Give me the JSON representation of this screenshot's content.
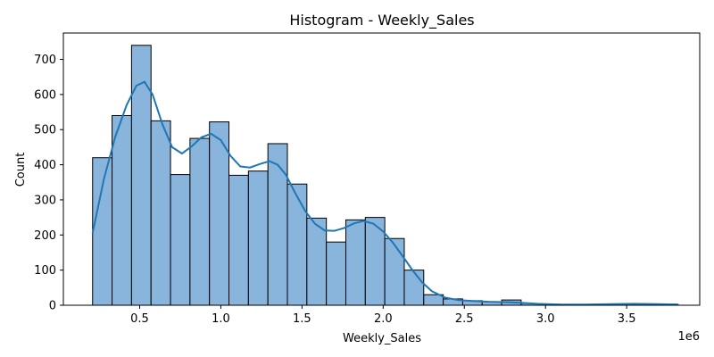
{
  "chart_data": {
    "type": "bar",
    "title": "Histogram - Weekly_Sales",
    "xlabel": "Weekly_Sales",
    "ylabel": "Count",
    "x_offset_label": "1e6",
    "xlim": [
      0.03,
      3.95
    ],
    "ylim": [
      0,
      775
    ],
    "xticks": [
      0.5,
      1.0,
      1.5,
      2.0,
      2.5,
      3.0,
      3.5
    ],
    "xtick_labels": [
      "0.5",
      "1.0",
      "1.5",
      "2.0",
      "2.5",
      "3.0",
      "3.5"
    ],
    "yticks": [
      0,
      100,
      200,
      300,
      400,
      500,
      600,
      700
    ],
    "ytick_labels": [
      "0",
      "100",
      "200",
      "300",
      "400",
      "500",
      "600",
      "700"
    ],
    "bar_color": "#89b4dc",
    "bar_edge_color": "#000000",
    "kde_color": "#1f77b4",
    "bins": [
      {
        "x0": 0.21,
        "x1": 0.33,
        "count": 420
      },
      {
        "x0": 0.33,
        "x1": 0.45,
        "count": 540
      },
      {
        "x0": 0.45,
        "x1": 0.57,
        "count": 740
      },
      {
        "x0": 0.57,
        "x1": 0.69,
        "count": 525
      },
      {
        "x0": 0.69,
        "x1": 0.81,
        "count": 372
      },
      {
        "x0": 0.81,
        "x1": 0.93,
        "count": 475
      },
      {
        "x0": 0.93,
        "x1": 1.05,
        "count": 522
      },
      {
        "x0": 1.05,
        "x1": 1.17,
        "count": 370
      },
      {
        "x0": 1.17,
        "x1": 1.29,
        "count": 382
      },
      {
        "x0": 1.29,
        "x1": 1.41,
        "count": 460
      },
      {
        "x0": 1.41,
        "x1": 1.53,
        "count": 345
      },
      {
        "x0": 1.53,
        "x1": 1.65,
        "count": 248
      },
      {
        "x0": 1.65,
        "x1": 1.77,
        "count": 180
      },
      {
        "x0": 1.77,
        "x1": 1.89,
        "count": 243
      },
      {
        "x0": 1.89,
        "x1": 2.01,
        "count": 250
      },
      {
        "x0": 2.01,
        "x1": 2.13,
        "count": 190
      },
      {
        "x0": 2.13,
        "x1": 2.25,
        "count": 100
      },
      {
        "x0": 2.25,
        "x1": 2.37,
        "count": 30
      },
      {
        "x0": 2.37,
        "x1": 2.49,
        "count": 18
      },
      {
        "x0": 2.49,
        "x1": 2.61,
        "count": 13
      },
      {
        "x0": 2.61,
        "x1": 2.73,
        "count": 10
      },
      {
        "x0": 2.73,
        "x1": 2.85,
        "count": 15
      },
      {
        "x0": 2.85,
        "x1": 2.97,
        "count": 5
      },
      {
        "x0": 2.97,
        "x1": 3.09,
        "count": 2
      },
      {
        "x0": 3.09,
        "x1": 3.21,
        "count": 1
      },
      {
        "x0": 3.21,
        "x1": 3.33,
        "count": 1
      },
      {
        "x0": 3.33,
        "x1": 3.45,
        "count": 2
      },
      {
        "x0": 3.45,
        "x1": 3.57,
        "count": 4
      },
      {
        "x0": 3.57,
        "x1": 3.69,
        "count": 2
      },
      {
        "x0": 3.69,
        "x1": 3.81,
        "count": 3
      }
    ],
    "kde": {
      "x": [
        0.21,
        0.28,
        0.35,
        0.42,
        0.48,
        0.53,
        0.58,
        0.64,
        0.7,
        0.76,
        0.82,
        0.88,
        0.94,
        1.0,
        1.06,
        1.12,
        1.18,
        1.24,
        1.3,
        1.35,
        1.4,
        1.46,
        1.52,
        1.58,
        1.64,
        1.7,
        1.76,
        1.82,
        1.88,
        1.94,
        2.0,
        2.06,
        2.12,
        2.18,
        2.24,
        2.3,
        2.38,
        2.46,
        2.55,
        2.65,
        2.75,
        2.85,
        2.95,
        3.1,
        3.25,
        3.4,
        3.55,
        3.7,
        3.82
      ],
      "y": [
        205,
        360,
        480,
        570,
        625,
        636,
        600,
        515,
        450,
        432,
        452,
        478,
        488,
        470,
        425,
        395,
        392,
        402,
        410,
        400,
        372,
        318,
        268,
        232,
        213,
        212,
        220,
        233,
        240,
        232,
        210,
        178,
        140,
        100,
        65,
        40,
        22,
        15,
        12,
        10,
        9,
        7,
        4,
        2,
        2,
        3,
        4,
        3,
        2
      ]
    }
  }
}
